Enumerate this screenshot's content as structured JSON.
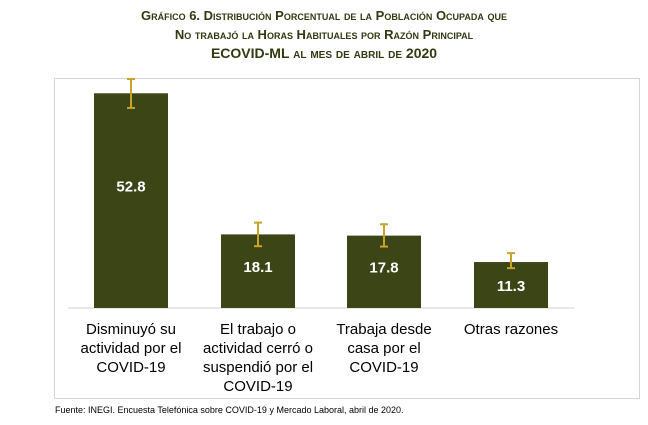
{
  "title": {
    "line1": "Gráfico 6. Distribución Porcentual de la Población Ocupada que",
    "line2": "No trabajó la Horas Habituales por Razón Principal",
    "line3": "ECOVID-ML al mes de abril de 2020"
  },
  "source": "Fuente: INEGI. Encuesta Telefónica sobre COVID-19 y Mercado Laboral, abril de 2020.",
  "colors": {
    "bar": "#3b4516",
    "error_bar": "#c9a227",
    "label": "#ffffff",
    "title": "#2f3a10"
  },
  "chart_data": {
    "type": "bar",
    "title": "Gráfico 6. Distribución Porcentual de la Población Ocupada que No trabajó la Horas Habituales por Razón Principal ECOVID-ML al mes de abril de 2020",
    "categories": [
      "Disminuyó su actividad por el COVID-19",
      "El trabajo o actividad cerró o suspendió por el COVID-19",
      "Trabaja desde casa por el COVID-19",
      "Otras razones"
    ],
    "category_lines": [
      [
        "Disminuyó su",
        "actividad por el",
        "COVID-19"
      ],
      [
        "El trabajo o",
        "actividad cerró o",
        "suspendió por el",
        "COVID-19"
      ],
      [
        "Trabaja desde",
        "casa por el",
        "COVID-19"
      ],
      [
        "Otras razones"
      ]
    ],
    "values": [
      52.8,
      18.1,
      17.8,
      11.3
    ],
    "value_labels": [
      "52.8",
      "18.1",
      "17.8",
      "11.3"
    ],
    "error_low": [
      49.2,
      15.2,
      15.1,
      9.8
    ],
    "error_high": [
      56.3,
      21.0,
      20.6,
      13.5
    ],
    "ylim": [
      0,
      60
    ],
    "xlabel": "",
    "ylabel": "",
    "grid": false,
    "legend": "none"
  }
}
